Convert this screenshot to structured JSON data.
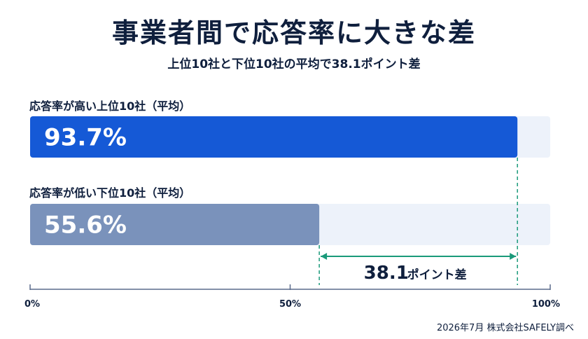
{
  "title": "事業者間で応答率に大きな差",
  "subtitle": "上位10社と下位10社の平均で38.1ポイント差",
  "footnote": "2026年7月 株式会社SAFELY調べ",
  "colors": {
    "top_bar": "#1559d6",
    "bottom_bar": "#7a92bb",
    "track": "#edf2fa",
    "diff_line": "#1a9a7a",
    "axis": "#5a6b8c",
    "value_text": "#ffffff"
  },
  "chart_data": {
    "type": "bar",
    "orientation": "horizontal",
    "unit": "%",
    "xlim": [
      0,
      100
    ],
    "categories": [
      "応答率が高い上位10社（平均）",
      "応答率が低い下位10社（平均）"
    ],
    "values": [
      93.7,
      55.6
    ],
    "value_labels": [
      "93.7%",
      "55.6%"
    ],
    "axis_ticks": [
      {
        "value": 0,
        "label": "0%"
      },
      {
        "value": 50,
        "label": "50%"
      },
      {
        "value": 100,
        "label": "100%"
      }
    ],
    "difference": {
      "value": 38.1,
      "number_label": "38.1",
      "suffix_label": "ポイント差"
    }
  }
}
